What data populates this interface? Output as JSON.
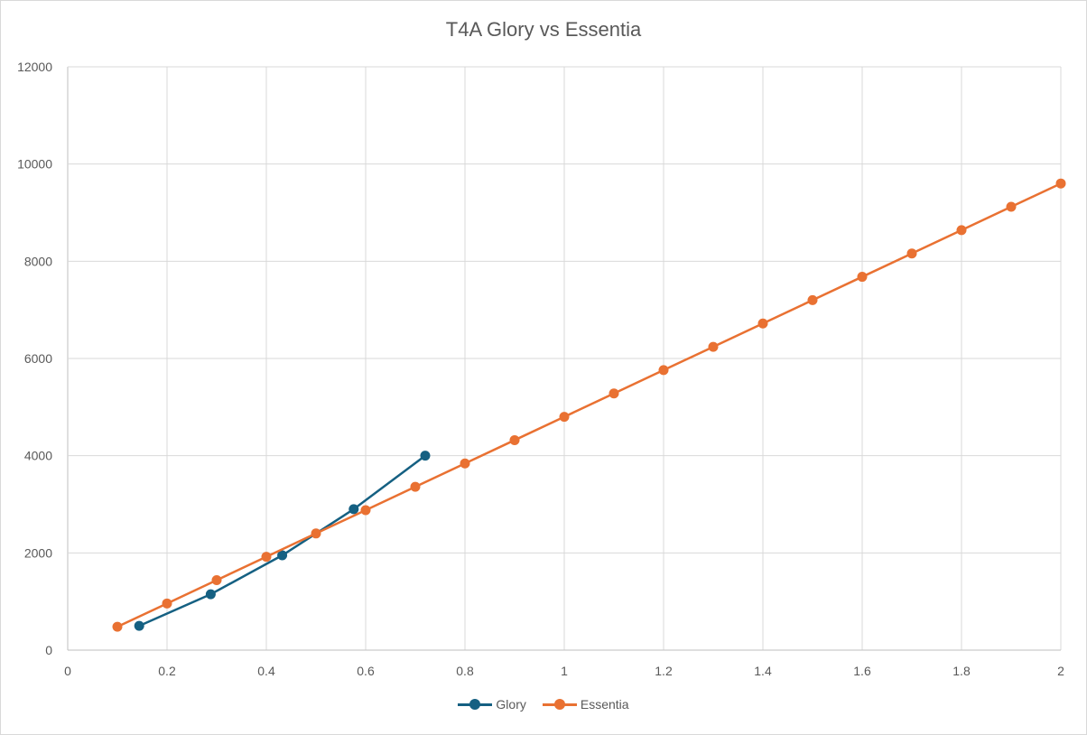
{
  "chart_data": {
    "type": "line",
    "title": "T4A Glory vs Essentia",
    "xlabel": "",
    "ylabel": "",
    "xlim": [
      0,
      2
    ],
    "ylim": [
      0,
      12000
    ],
    "xticks": [
      "0",
      "0.2",
      "0.4",
      "0.6",
      "0.8",
      "1",
      "1.2",
      "1.4",
      "1.6",
      "1.8",
      "2"
    ],
    "yticks": [
      "0",
      "2000",
      "4000",
      "6000",
      "8000",
      "10000",
      "12000"
    ],
    "grid": true,
    "legend_position": "bottom",
    "series": [
      {
        "name": "Glory",
        "color": "#156082",
        "x": [
          0.144,
          0.288,
          0.432,
          0.576,
          0.72
        ],
        "y": [
          500,
          1150,
          1950,
          2900,
          4000
        ]
      },
      {
        "name": "Essentia",
        "color": "#E97132",
        "x": [
          0.1,
          0.2,
          0.3,
          0.4,
          0.5,
          0.6,
          0.7,
          0.8,
          0.9,
          1.0,
          1.1,
          1.2,
          1.3,
          1.4,
          1.5,
          1.6,
          1.7,
          1.8,
          1.9,
          2.0
        ],
        "y": [
          480,
          960,
          1440,
          1920,
          2400,
          2880,
          3360,
          3840,
          4320,
          4800,
          5280,
          5760,
          6240,
          6720,
          7200,
          7680,
          8160,
          8640,
          9120,
          9600
        ]
      }
    ]
  }
}
